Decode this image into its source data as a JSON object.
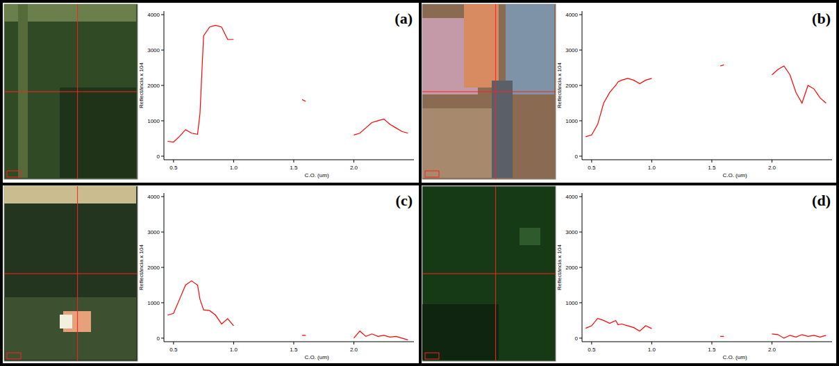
{
  "chart_data": [
    {
      "type": "line",
      "title": "(a)",
      "x_label": "C.O. (um)",
      "y_label": "Reflectância x 104",
      "x": [
        0.45,
        0.5,
        0.55,
        0.6,
        0.65,
        0.7,
        0.72,
        0.75,
        0.8,
        0.85,
        0.9,
        0.95,
        1.0,
        1.3,
        1.57,
        1.6,
        1.8,
        2.0,
        2.05,
        2.1,
        2.15,
        2.2,
        2.25,
        2.3,
        2.35,
        2.4,
        2.45
      ],
      "values": [
        420,
        400,
        560,
        750,
        650,
        620,
        1200,
        3400,
        3650,
        3700,
        3650,
        3300,
        3300,
        null,
        1600,
        1550,
        null,
        600,
        650,
        800,
        950,
        1000,
        1050,
        900,
        800,
        700,
        650
      ],
      "color": "#ff0000",
      "xlim": [
        0.42,
        2.5
      ],
      "ylim": [
        -100,
        4100
      ],
      "xticks": [
        0.5,
        {
          "value": 1,
          "label": "1.0"
        },
        1.5,
        {
          "value": 2,
          "label": "2.0"
        }
      ],
      "yticks": [
        0,
        1000,
        2000,
        3000,
        4000
      ],
      "grid": false
    },
    {
      "type": "line",
      "title": "(b)",
      "x_label": "C.O. (um)",
      "y_label": "Reflectância x 104",
      "x": [
        0.45,
        0.5,
        0.55,
        0.6,
        0.65,
        0.7,
        0.72,
        0.75,
        0.8,
        0.85,
        0.9,
        0.95,
        1.0,
        1.3,
        1.57,
        1.6,
        1.8,
        2.0,
        2.05,
        2.1,
        2.15,
        2.2,
        2.25,
        2.3,
        2.35,
        2.4,
        2.45
      ],
      "values": [
        550,
        600,
        900,
        1500,
        1800,
        2000,
        2100,
        2150,
        2200,
        2150,
        2050,
        2150,
        2200,
        null,
        2550,
        2580,
        null,
        2300,
        2450,
        2550,
        2300,
        1800,
        1500,
        2000,
        1900,
        1650,
        1500
      ],
      "color": "#ff0000",
      "xlim": [
        0.42,
        2.5
      ],
      "ylim": [
        -100,
        4100
      ],
      "xticks": [
        0.5,
        {
          "value": 1,
          "label": "1.0"
        },
        1.5,
        {
          "value": 2,
          "label": "2.0"
        }
      ],
      "yticks": [
        0,
        1000,
        2000,
        3000,
        4000
      ],
      "grid": false
    },
    {
      "type": "line",
      "title": "(c)",
      "x_label": "C.O. (um)",
      "y_label": "Reflectância x 104",
      "x": [
        0.45,
        0.5,
        0.55,
        0.6,
        0.65,
        0.7,
        0.72,
        0.75,
        0.8,
        0.85,
        0.9,
        0.95,
        1.0,
        1.3,
        1.57,
        1.6,
        1.8,
        2.0,
        2.05,
        2.1,
        2.15,
        2.2,
        2.25,
        2.3,
        2.35,
        2.4,
        2.45
      ],
      "values": [
        650,
        700,
        1100,
        1500,
        1620,
        1500,
        1100,
        800,
        780,
        650,
        400,
        550,
        350,
        null,
        80,
        80,
        null,
        0,
        200,
        50,
        120,
        50,
        80,
        30,
        50,
        0,
        -50
      ],
      "color": "#ff0000",
      "xlim": [
        0.42,
        2.5
      ],
      "ylim": [
        -100,
        4100
      ],
      "xticks": [
        0.5,
        {
          "value": 1,
          "label": "1.0"
        },
        1.5,
        {
          "value": 2,
          "label": "2.0"
        }
      ],
      "yticks": [
        0,
        1000,
        2000,
        3000,
        4000
      ],
      "grid": false
    },
    {
      "type": "line",
      "title": "(d)",
      "x_label": "C.O. (um)",
      "y_label": "Reflectância x 104",
      "x": [
        0.45,
        0.5,
        0.55,
        0.6,
        0.65,
        0.7,
        0.72,
        0.75,
        0.8,
        0.85,
        0.9,
        0.95,
        1.0,
        1.3,
        1.57,
        1.6,
        1.8,
        2.0,
        2.05,
        2.1,
        2.15,
        2.2,
        2.25,
        2.3,
        2.35,
        2.4,
        2.45
      ],
      "values": [
        280,
        350,
        560,
        500,
        420,
        500,
        380,
        400,
        350,
        300,
        200,
        350,
        270,
        null,
        50,
        50,
        null,
        120,
        100,
        0,
        80,
        30,
        100,
        50,
        80,
        30,
        80
      ],
      "color": "#ff0000",
      "xlim": [
        0.42,
        2.5
      ],
      "ylim": [
        -100,
        4100
      ],
      "xticks": [
        0.5,
        {
          "value": 1,
          "label": "1.0"
        },
        1.5,
        {
          "value": 2,
          "label": "2.0"
        }
      ],
      "yticks": [
        0,
        1000,
        2000,
        3000,
        4000
      ],
      "grid": false
    }
  ]
}
